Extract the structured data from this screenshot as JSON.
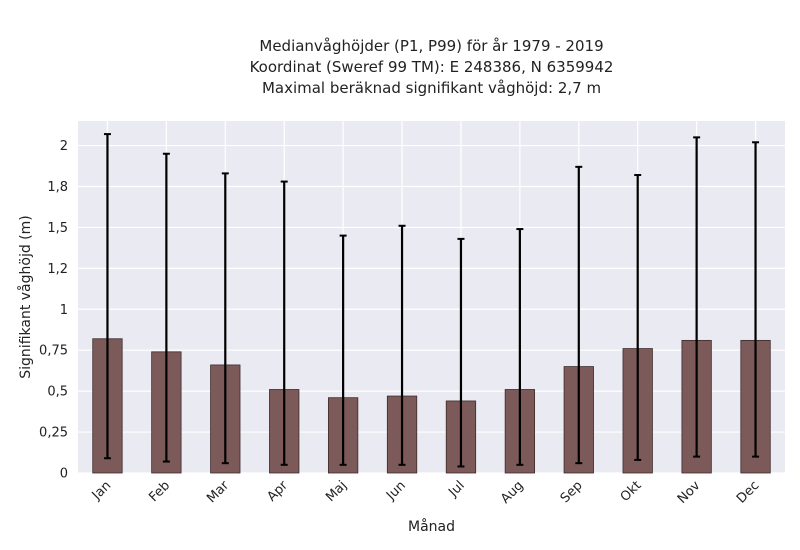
{
  "chart_data": {
    "type": "bar",
    "title_lines": [
      "Medianvåghöjder (P1, P99) för år 1979 - 2019",
      "Koordinat (Sweref 99 TM): E 248386, N 6359942",
      "Maximal beräknad signifikant våghöjd: 2,7 m"
    ],
    "xlabel": "Månad",
    "ylabel": "Signifikant våghöjd (m)",
    "categories": [
      "Jan",
      "Feb",
      "Mar",
      "Apr",
      "Maj",
      "Jun",
      "Jul",
      "Aug",
      "Sep",
      "Okt",
      "Nov",
      "Dec"
    ],
    "values": [
      0.82,
      0.74,
      0.66,
      0.51,
      0.46,
      0.47,
      0.44,
      0.51,
      0.65,
      0.76,
      0.81,
      0.81
    ],
    "p1": [
      0.09,
      0.07,
      0.06,
      0.05,
      0.05,
      0.05,
      0.04,
      0.05,
      0.06,
      0.08,
      0.1,
      0.1
    ],
    "p99": [
      2.07,
      1.95,
      1.83,
      1.78,
      1.45,
      1.51,
      1.43,
      1.49,
      1.87,
      1.82,
      2.05,
      2.02
    ],
    "ylim": [
      0,
      2.15
    ],
    "yticks": [
      0,
      0.25,
      0.5,
      0.75,
      1,
      1.25,
      1.5,
      1.75,
      2
    ],
    "ytick_labels": [
      "0",
      "0,25",
      "0,5",
      "0,75",
      "1",
      "1,2",
      "1,5",
      "1,8",
      "2"
    ],
    "grid": true,
    "colors": {
      "bar": "#7d5a5a",
      "bar_edge": "#3d2b2b",
      "plot_bg": "#eaeaf2",
      "grid": "#ffffff",
      "errorbar": "#000000"
    }
  }
}
